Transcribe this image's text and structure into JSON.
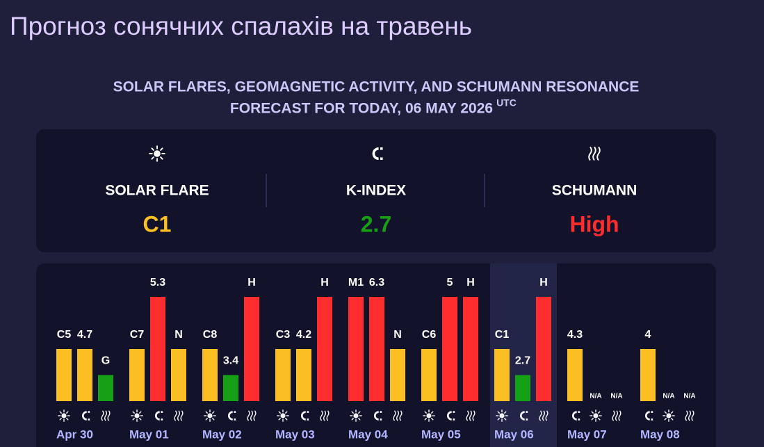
{
  "title": "Прогноз сонячних спалахів на травень",
  "subtitle": [
    "SOLAR FLARES, GEOMAGNETIC ACTIVITY, AND SCHUMANN RESONANCE",
    "FORECAST FOR TODAY, 06 MAY 2026"
  ],
  "subtitle_unit": "UTC",
  "summary": [
    {
      "kind": "flare",
      "label": "SOLAR FLARE",
      "value": "C1",
      "color": "#fbbf24"
    },
    {
      "kind": "k",
      "label": "K-INDEX",
      "value": "2.7",
      "color": "#16a016"
    },
    {
      "kind": "schumann",
      "label": "SCHUMANN",
      "value": "High",
      "color": "#ff2d2d"
    }
  ],
  "days": [
    {
      "date": "Apr 30",
      "bars": [
        {
          "kind": "flare",
          "label": "C5",
          "level": 2,
          "color": "#fbbf24"
        },
        {
          "kind": "k",
          "label": "4.7",
          "level": 2,
          "color": "#fbbf24"
        },
        {
          "kind": "schumann",
          "label": "G",
          "level": 1,
          "color": "#16a016"
        }
      ]
    },
    {
      "date": "May 01",
      "bars": [
        {
          "kind": "flare",
          "label": "C7",
          "level": 2,
          "color": "#fbbf24"
        },
        {
          "kind": "k",
          "label": "5.3",
          "level": 4,
          "color": "#ff2d2d"
        },
        {
          "kind": "schumann",
          "label": "N",
          "level": 2,
          "color": "#fbbf24"
        }
      ]
    },
    {
      "date": "May 02",
      "bars": [
        {
          "kind": "flare",
          "label": "C8",
          "level": 2,
          "color": "#fbbf24"
        },
        {
          "kind": "k",
          "label": "3.4",
          "level": 1,
          "color": "#16a016"
        },
        {
          "kind": "schumann",
          "label": "H",
          "level": 4,
          "color": "#ff2d2d"
        }
      ]
    },
    {
      "date": "May 03",
      "bars": [
        {
          "kind": "flare",
          "label": "C3",
          "level": 2,
          "color": "#fbbf24"
        },
        {
          "kind": "k",
          "label": "4.2",
          "level": 2,
          "color": "#fbbf24"
        },
        {
          "kind": "schumann",
          "label": "H",
          "level": 4,
          "color": "#ff2d2d"
        }
      ]
    },
    {
      "date": "May 04",
      "bars": [
        {
          "kind": "flare",
          "label": "M1",
          "level": 4,
          "color": "#ff2d2d"
        },
        {
          "kind": "k",
          "label": "6.3",
          "level": 4,
          "color": "#ff2d2d"
        },
        {
          "kind": "schumann",
          "label": "N",
          "level": 2,
          "color": "#fbbf24"
        }
      ]
    },
    {
      "date": "May 05",
      "bars": [
        {
          "kind": "flare",
          "label": "C6",
          "level": 2,
          "color": "#fbbf24"
        },
        {
          "kind": "k",
          "label": "5",
          "level": 4,
          "color": "#ff2d2d"
        },
        {
          "kind": "schumann",
          "label": "H",
          "level": 4,
          "color": "#ff2d2d"
        }
      ]
    },
    {
      "date": "May 06",
      "highlight": true,
      "bars": [
        {
          "kind": "flare",
          "label": "C1",
          "level": 2,
          "color": "#fbbf24"
        },
        {
          "kind": "k",
          "label": "2.7",
          "level": 1,
          "color": "#16a016"
        },
        {
          "kind": "schumann",
          "label": "H",
          "level": 4,
          "color": "#ff2d2d"
        }
      ]
    },
    {
      "date": "May 07",
      "bars": [
        {
          "kind": "k",
          "label": "4.3",
          "level": 2,
          "color": "#fbbf24"
        },
        {
          "kind": "flare",
          "label": "N/A",
          "level": null
        },
        {
          "kind": "schumann",
          "label": "N/A",
          "level": null
        }
      ]
    },
    {
      "date": "May 08",
      "bars": [
        {
          "kind": "k",
          "label": "4",
          "level": 2,
          "color": "#fbbf24"
        },
        {
          "kind": "flare",
          "label": "N/A",
          "level": null
        },
        {
          "kind": "schumann",
          "label": "N/A",
          "level": null
        }
      ]
    }
  ]
}
